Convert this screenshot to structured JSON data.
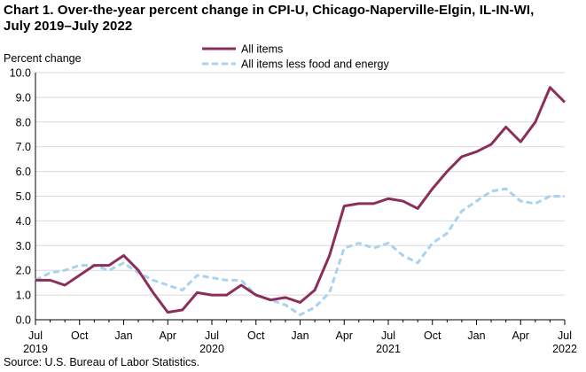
{
  "title": {
    "line1": "Chart 1. Over-the-year percent change in CPI-U, Chicago-Naperville-Elgin,  IL-IN-WI,",
    "line2": "July 2019–July 2022"
  },
  "source": "Source: U.S. Bureau  of Labor Statistics.",
  "chart_data": {
    "type": "line",
    "title": "Chart 1. Over-the-year percent change in CPI-U, Chicago-Naperville-Elgin,  IL-IN-WI, July 2019–July 2022",
    "ylabel": "Percent change",
    "xlabel": "",
    "ylim": [
      0.0,
      10.0
    ],
    "yticks": [
      "0.0",
      "1.0",
      "2.0",
      "3.0",
      "4.0",
      "5.0",
      "6.0",
      "7.0",
      "8.0",
      "9.0",
      "10.0"
    ],
    "ytick_values": [
      0,
      1,
      2,
      3,
      4,
      5,
      6,
      7,
      8,
      9,
      10
    ],
    "x": [
      "Jul 2019",
      "Aug 2019",
      "Sep 2019",
      "Oct 2019",
      "Nov 2019",
      "Dec 2019",
      "Jan 2020",
      "Feb 2020",
      "Mar 2020",
      "Apr 2020",
      "May 2020",
      "Jun 2020",
      "Jul 2020",
      "Aug 2020",
      "Sep 2020",
      "Oct 2020",
      "Nov 2020",
      "Dec 2020",
      "Jan 2021",
      "Feb 2021",
      "Mar 2021",
      "Apr 2021",
      "May 2021",
      "Jun 2021",
      "Jul 2021",
      "Aug 2021",
      "Sep 2021",
      "Oct 2021",
      "Nov 2021",
      "Dec 2021",
      "Jan 2022",
      "Feb 2022",
      "Mar 2022",
      "Apr 2022",
      "May 2022",
      "Jun 2022",
      "Jul 2022"
    ],
    "xtick_labels": [
      {
        "month": "Jul",
        "year": "2019",
        "index": 0
      },
      {
        "month": "Oct",
        "year": "",
        "index": 3
      },
      {
        "month": "Jan",
        "year": "",
        "index": 6
      },
      {
        "month": "Apr",
        "year": "",
        "index": 9
      },
      {
        "month": "Jul",
        "year": "2020",
        "index": 12
      },
      {
        "month": "Oct",
        "year": "",
        "index": 15
      },
      {
        "month": "Jan",
        "year": "",
        "index": 18
      },
      {
        "month": "Apr",
        "year": "",
        "index": 21
      },
      {
        "month": "Jul",
        "year": "2021",
        "index": 24
      },
      {
        "month": "Oct",
        "year": "",
        "index": 27
      },
      {
        "month": "Jan",
        "year": "",
        "index": 30
      },
      {
        "month": "Apr",
        "year": "",
        "index": 33
      },
      {
        "month": "Jul",
        "year": "2022",
        "index": 36
      }
    ],
    "grid": true,
    "legend_position": "top-center",
    "series": [
      {
        "name": "All items",
        "color": "#8b2e5a",
        "dash": "solid",
        "values": [
          1.6,
          1.6,
          1.4,
          1.8,
          2.2,
          2.2,
          2.6,
          2.0,
          1.1,
          0.3,
          0.4,
          1.1,
          1.0,
          1.0,
          1.4,
          1.0,
          0.8,
          0.9,
          0.7,
          1.2,
          2.6,
          4.6,
          4.7,
          4.7,
          4.9,
          4.8,
          4.5,
          5.3,
          6.0,
          6.6,
          6.8,
          7.1,
          7.8,
          7.2,
          8.0,
          9.4,
          8.8
        ]
      },
      {
        "name": "All items less food and energy",
        "color": "#a8d2ef",
        "dash": "dashed",
        "values": [
          1.6,
          1.9,
          2.0,
          2.2,
          2.2,
          2.0,
          2.3,
          1.9,
          1.6,
          1.4,
          1.2,
          1.8,
          1.7,
          1.6,
          1.6,
          1.0,
          0.8,
          0.6,
          0.2,
          0.5,
          1.1,
          2.9,
          3.1,
          2.9,
          3.1,
          2.6,
          2.3,
          3.1,
          3.5,
          4.4,
          4.8,
          5.2,
          5.3,
          4.8,
          4.7,
          5.0,
          5.0
        ]
      }
    ]
  }
}
